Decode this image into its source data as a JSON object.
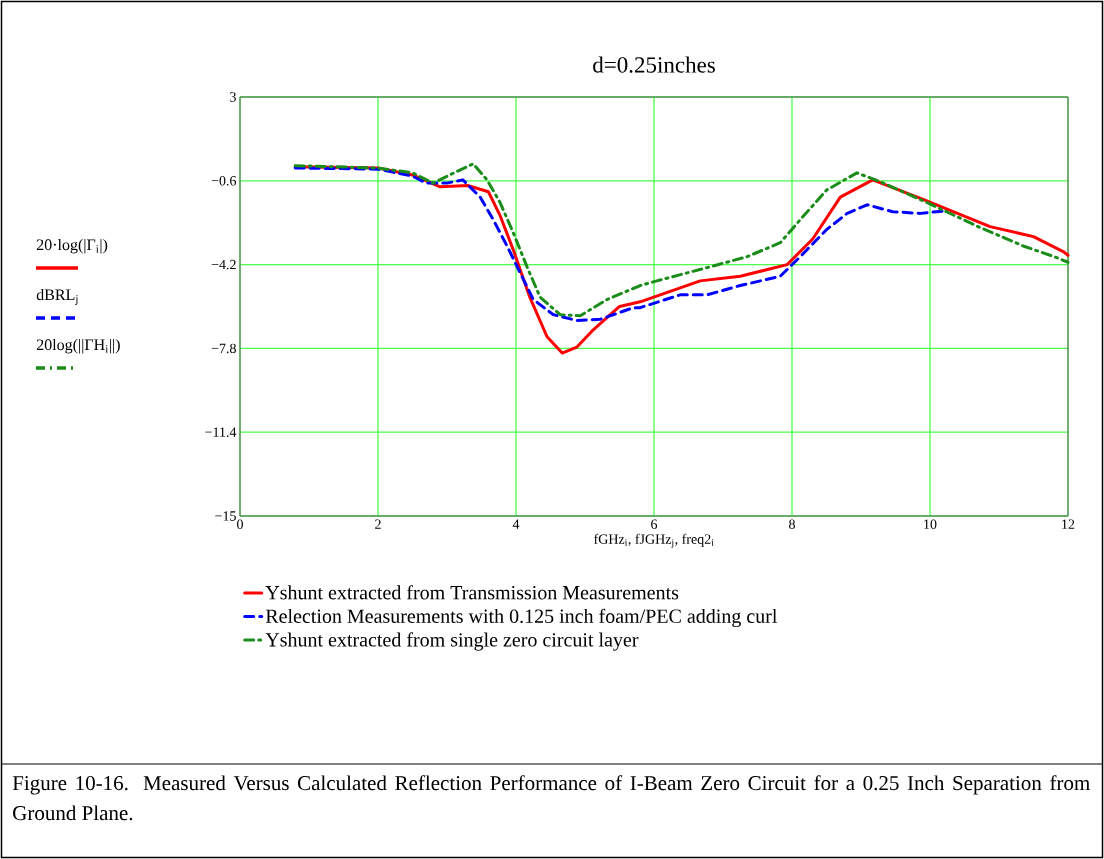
{
  "chart_data": {
    "type": "line",
    "title": "d=0.25inches",
    "xlabel": "fGHz$_{i}$, fJGHz$_{j}$, freq2$_{i}$",
    "xlim": [
      0,
      12
    ],
    "xticks": [
      0,
      2,
      4,
      6,
      8,
      10,
      12
    ],
    "ylim": [
      -15,
      3
    ],
    "yticks": [
      {
        "value": -15,
        "label": "−15"
      },
      {
        "value": -11.4,
        "label": "−11.4"
      },
      {
        "value": -7.8,
        "label": "−7.8"
      },
      {
        "value": -4.2,
        "label": "−4.2"
      },
      {
        "value": -0.6,
        "label": "−0.6"
      },
      3
    ],
    "grid": true,
    "legend": "bottom",
    "series": [
      {
        "name": "Yshunt extracted from Transmission Measurements",
        "color": "#ff0000",
        "line_style": "solid",
        "x": [
          0.8,
          2,
          2.5,
          2.9,
          3.3,
          3.6,
          3.77,
          3.96,
          4.2,
          4.45,
          4.67,
          4.88,
          5.12,
          5.5,
          5.8,
          6.09,
          6.67,
          7.25,
          7.93,
          8.3,
          8.7,
          9.17,
          9.9,
          10.87,
          11.5,
          11.93,
          12
        ],
        "values": [
          0.0,
          -0.05,
          -0.35,
          -0.86,
          -0.8,
          -1.07,
          -2.1,
          -3.56,
          -5.6,
          -7.3,
          -8.0,
          -7.75,
          -7.0,
          -6.0,
          -5.8,
          -5.5,
          -4.9,
          -4.7,
          -4.2,
          -3.1,
          -1.3,
          -0.56,
          -1.4,
          -2.57,
          -3.0,
          -3.64,
          -3.8
        ]
      },
      {
        "name": "Relection Measurements with 0.125 inch foam/PEC adding curl",
        "color": "#0000ff",
        "line_style": "dashed",
        "x": [
          0.8,
          2,
          2.5,
          2.7,
          3.0,
          3.23,
          3.48,
          3.67,
          3.87,
          4.06,
          4.25,
          4.54,
          4.88,
          5.22,
          5.7,
          5.8,
          6.38,
          6.77,
          7.25,
          7.83,
          8.12,
          8.5,
          8.8,
          9.09,
          9.46,
          9.86,
          10.2
        ],
        "values": [
          -0.05,
          -0.1,
          -0.4,
          -0.7,
          -0.7,
          -0.56,
          -1.3,
          -2.27,
          -3.4,
          -4.55,
          -5.7,
          -6.35,
          -6.6,
          -6.55,
          -6.05,
          -6.05,
          -5.5,
          -5.5,
          -5.1,
          -4.7,
          -3.86,
          -2.7,
          -2.0,
          -1.63,
          -1.93,
          -2.0,
          -1.9
        ]
      },
      {
        "name": "Yshunt extracted from single zero circuit layer",
        "color": "#1a8c1a",
        "line_style": "dashdot",
        "x": [
          0.8,
          2,
          2.5,
          2.8,
          3.1,
          3.38,
          3.58,
          3.77,
          3.96,
          4.16,
          4.35,
          4.64,
          4.93,
          5.32,
          5.8,
          6.04,
          6.77,
          7.35,
          7.83,
          8.12,
          8.5,
          8.94,
          9.28,
          9.96,
          10.72,
          11.35,
          11.8,
          12
        ],
        "values": [
          0.05,
          -0.05,
          -0.26,
          -0.7,
          -0.26,
          0.13,
          -0.56,
          -1.54,
          -2.83,
          -4.3,
          -5.6,
          -6.35,
          -6.4,
          -5.7,
          -5.1,
          -4.9,
          -4.33,
          -3.86,
          -3.26,
          -2.27,
          -1.0,
          -0.26,
          -0.64,
          -1.54,
          -2.6,
          -3.4,
          -3.86,
          -4.1
        ]
      }
    ],
    "annotations": [
      "20·log(|Γ$_{i}$|)",
      "dBRL$_{j}$",
      "20log(||ΓH$_{i}$||)",
      "Figure 10-16. Measured Versus Calculated Reflection Performance of I-Beam Zero Circuit for a 0.25 Inch Separation from Ground Plane."
    ]
  }
}
